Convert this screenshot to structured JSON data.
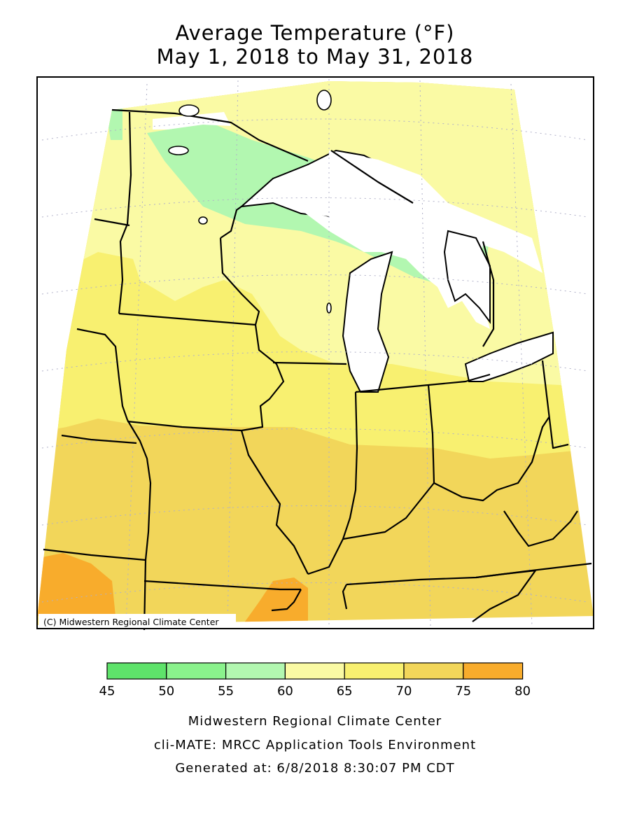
{
  "title_line1": "Average Temperature (°F)",
  "title_line2": "May 1, 2018 to May 31, 2018",
  "copyright": "(C) Midwestern Regional Climate Center",
  "legend": {
    "ticks": [
      "45",
      "50",
      "55",
      "60",
      "65",
      "70",
      "75",
      "80"
    ],
    "colors": [
      "#5ee36a",
      "#8af28c",
      "#b2f7b0",
      "#fafaa4",
      "#f8f070",
      "#f2d65a",
      "#f8ac2c"
    ]
  },
  "footer": {
    "line1": "Midwestern Regional Climate Center",
    "line2": "cli-MATE: MRCC Application Tools Environment",
    "line3": "Generated at: 6/8/2018 8:30:07 PM CDT"
  }
}
